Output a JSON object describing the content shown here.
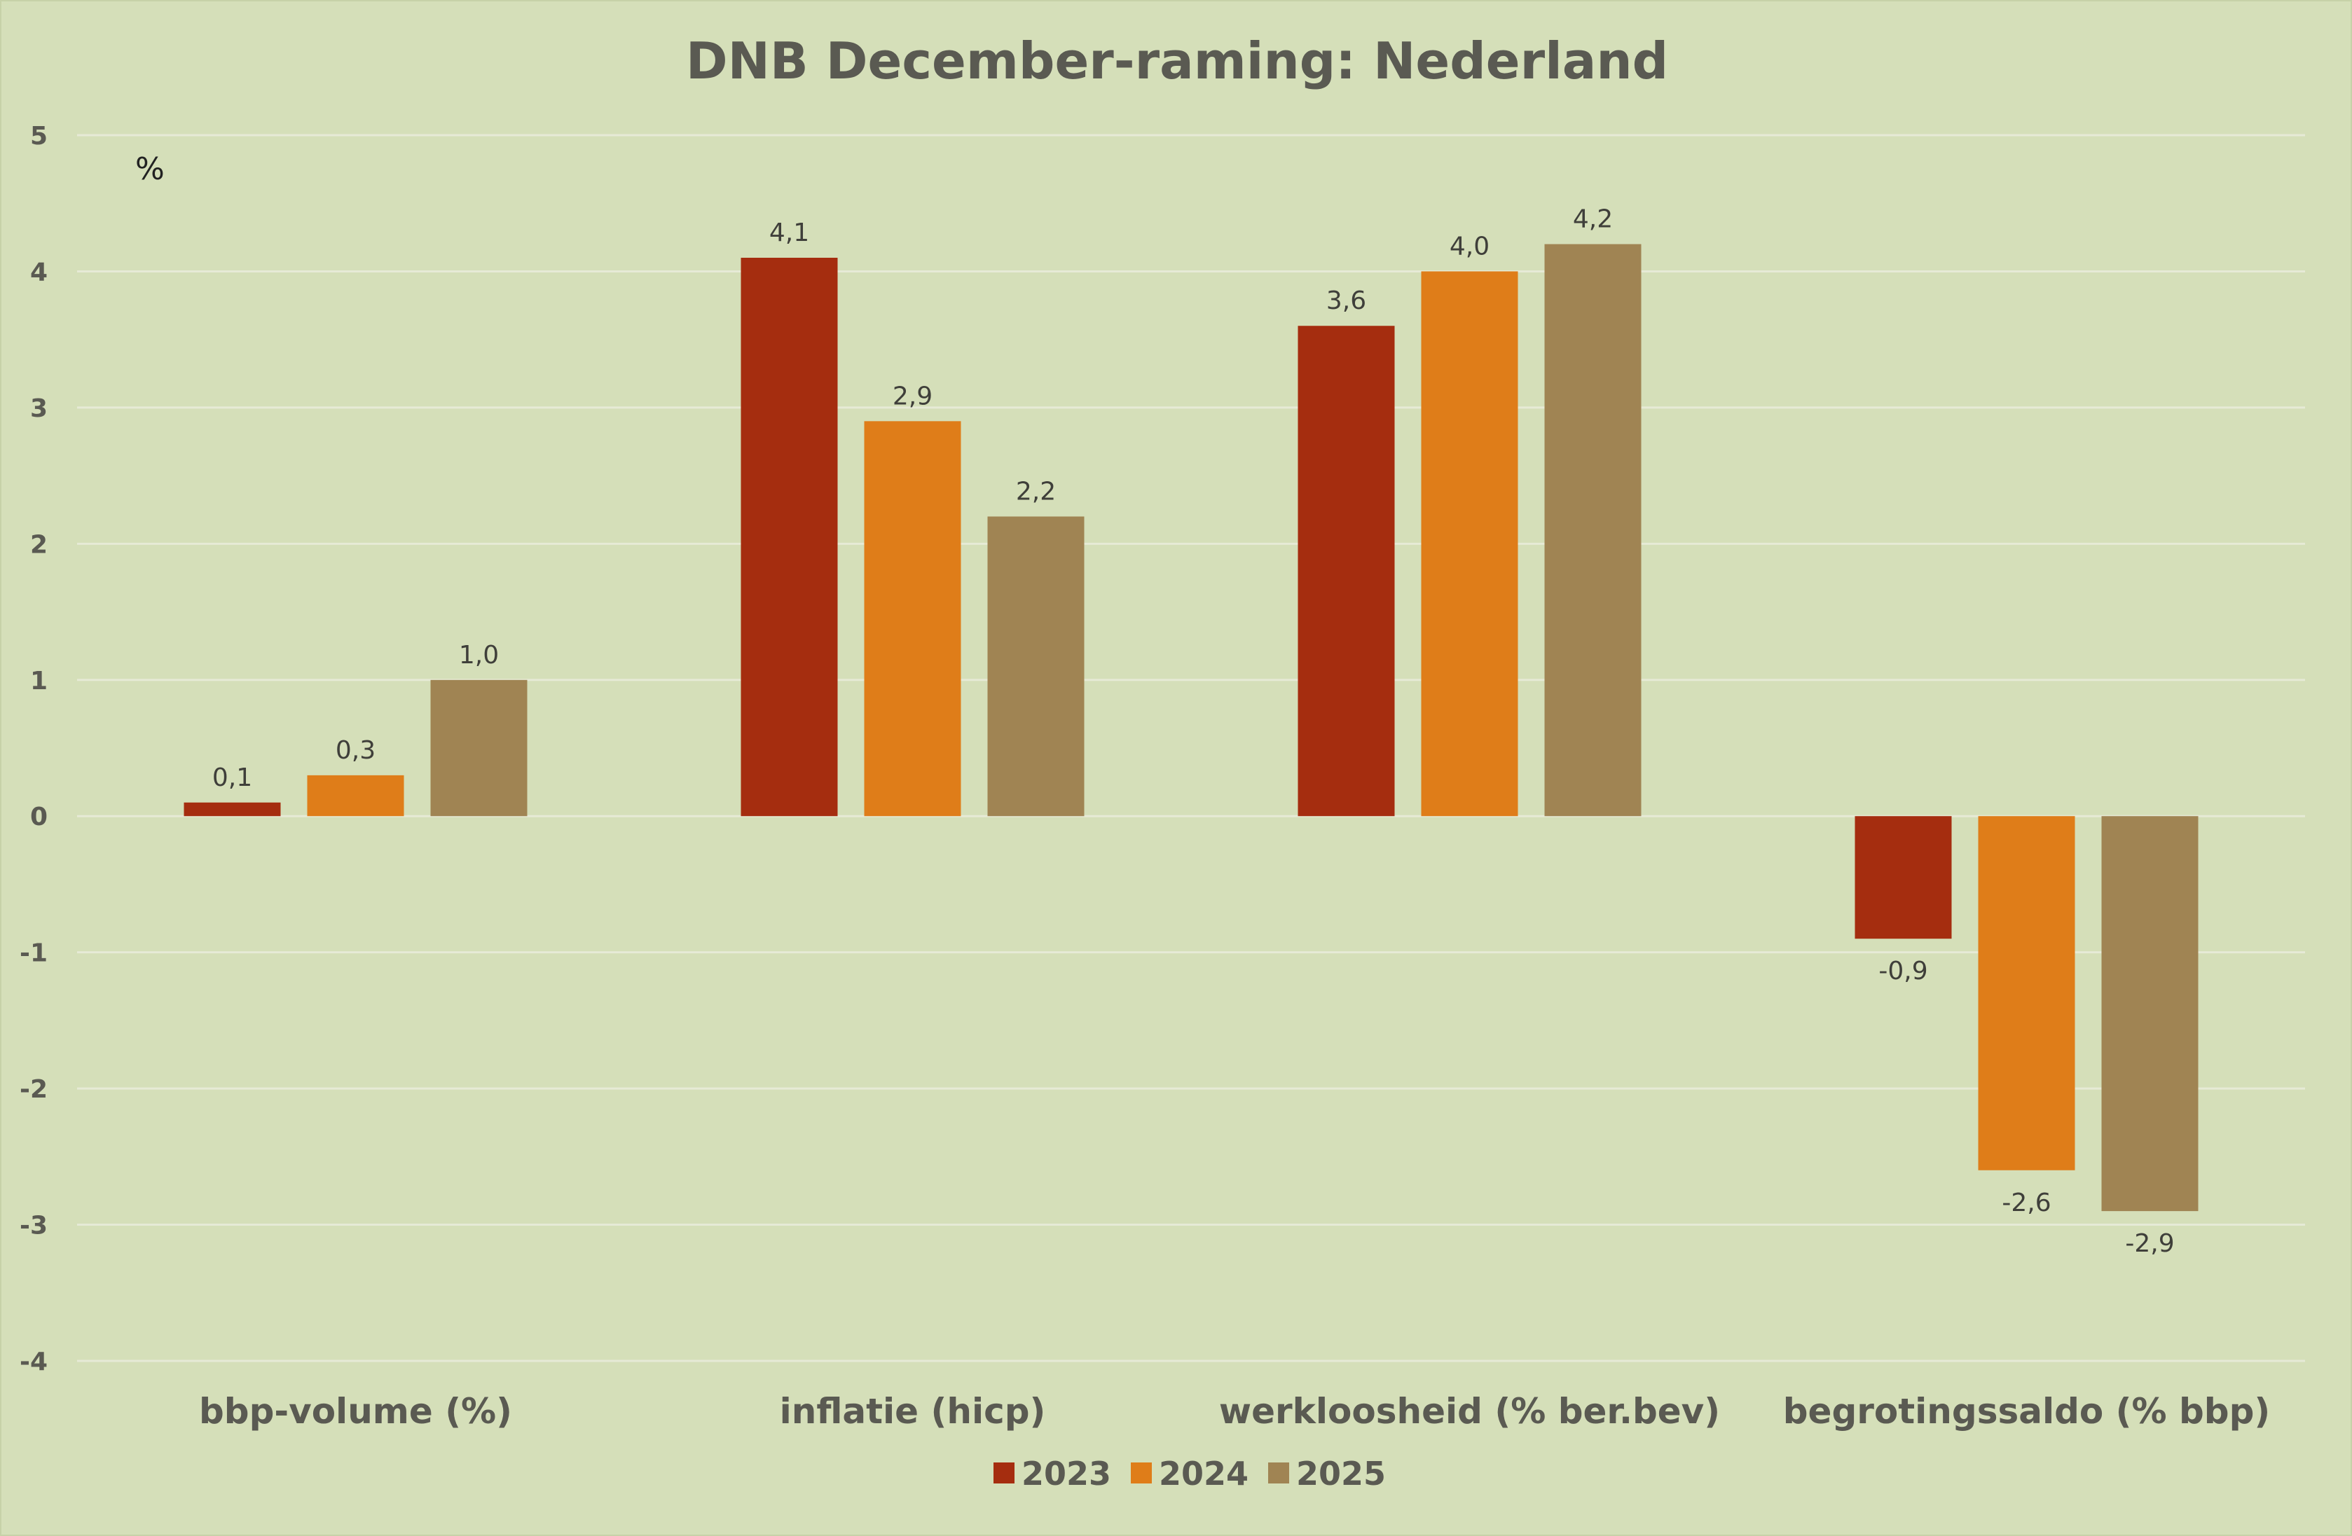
{
  "chart_data": {
    "type": "bar",
    "title": "DNB December-raming: Nederland",
    "unit_label": "%",
    "categories": [
      "bbp-volume (%)",
      "inflatie (hicp)",
      "werkloosheid (% ber.bev)",
      "begrotingssaldo (% bbp)"
    ],
    "series": [
      {
        "name": "2023",
        "color": "#a52d0f",
        "values": [
          0.1,
          4.1,
          3.6,
          -0.9
        ],
        "labels": [
          "0,1",
          "4,1",
          "3,6",
          "-0,9"
        ]
      },
      {
        "name": "2024",
        "color": "#df7d19",
        "values": [
          0.3,
          2.9,
          4.0,
          -2.6
        ],
        "labels": [
          "0,3",
          "2,9",
          "4,0",
          "-2,6"
        ]
      },
      {
        "name": "2025",
        "color": "#a08453",
        "values": [
          1.0,
          2.2,
          4.2,
          -2.9
        ],
        "labels": [
          "1,0",
          "2,2",
          "4,2",
          "-2,9"
        ]
      }
    ],
    "ylim": [
      -4,
      5
    ],
    "yticks": [
      5,
      4,
      3,
      2,
      1,
      0,
      -1,
      -2,
      -3,
      -4
    ],
    "ytick_labels": [
      "5",
      "4",
      "3",
      "2",
      "1",
      "0",
      "-1",
      "-2",
      "-3",
      "-4"
    ],
    "grid": true,
    "legend_position": "bottom-center"
  }
}
